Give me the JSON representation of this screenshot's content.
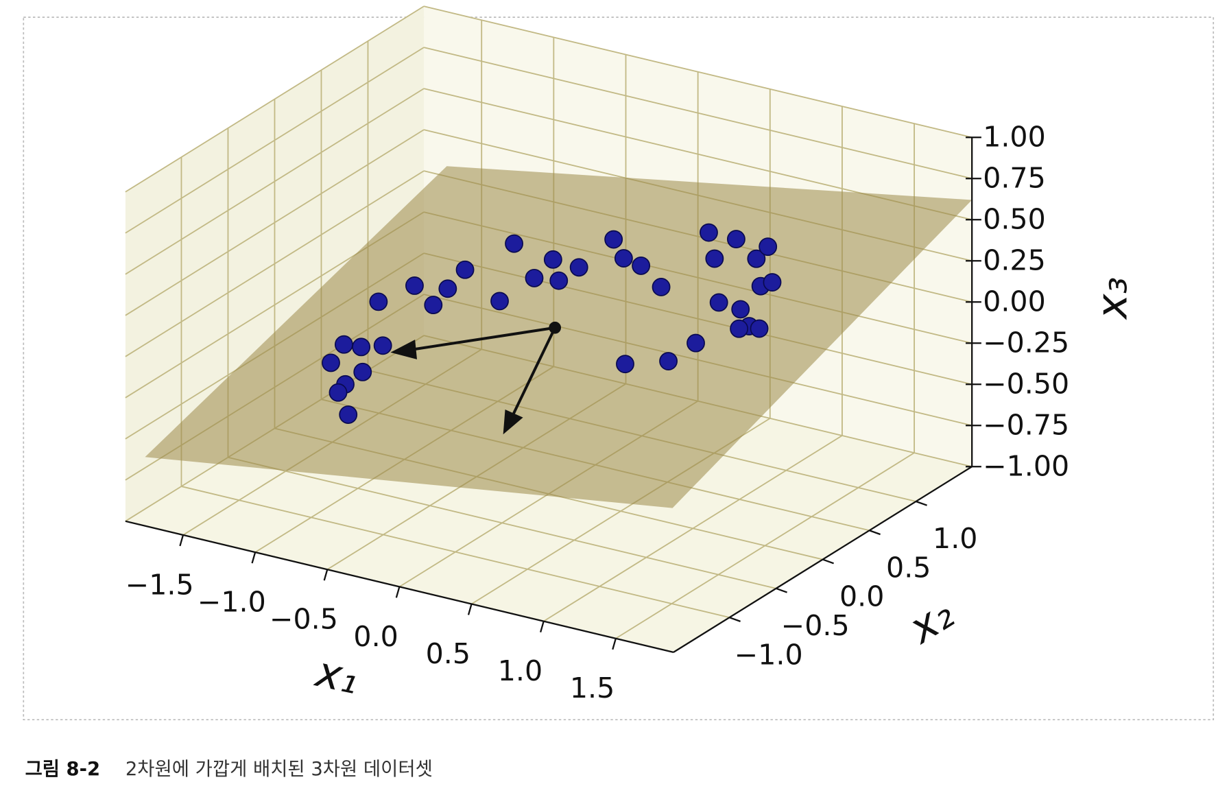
{
  "chart_data": {
    "type": "scatter3d",
    "caption_label": "그림 8-2",
    "caption": "2차원에 가깝게 배치된 3차원 데이터셋",
    "x_label": "x₁",
    "y_label": "x₂",
    "z_label": "x₃",
    "color": "#1c1c9c",
    "grid": true,
    "xlim": [
      -1.9,
      1.9
    ],
    "ylim": [
      -1.6,
      1.6
    ],
    "zlim": [
      -1,
      1
    ],
    "xticks": [
      {
        "value": -1.5,
        "label": "−1.5"
      },
      {
        "value": -1,
        "label": "−1.0"
      },
      {
        "value": -0.5,
        "label": "−0.5"
      },
      {
        "value": 0,
        "label": "0.0"
      },
      0.5,
      {
        "value": 1,
        "label": "1.0"
      },
      1.5
    ],
    "yticks": [
      {
        "value": -1,
        "label": "−1.0"
      },
      {
        "value": -0.5,
        "label": "−0.5"
      },
      {
        "value": 0,
        "label": "0.0"
      },
      0.5,
      {
        "value": 1,
        "label": "1.0"
      }
    ],
    "zticks": [
      {
        "value": -1,
        "label": "−1.00"
      },
      {
        "value": -0.75,
        "label": "−0.75"
      },
      {
        "value": -0.5,
        "label": "−0.50"
      },
      {
        "value": -0.25,
        "label": "−0.25"
      },
      {
        "value": 0,
        "label": "0.00"
      },
      {
        "value": 0.25,
        "label": "0.25"
      },
      {
        "value": 0.5,
        "label": "0.50"
      },
      {
        "value": 0.75,
        "label": "0.75"
      },
      {
        "value": 1,
        "label": "1.00"
      }
    ],
    "x": [
      -1.18,
      -1.42,
      -1.3,
      -1.51,
      -1.29,
      -1.41,
      -1.46,
      -1.39,
      -1.15,
      -0.93,
      -0.8,
      -0.7,
      -0.58,
      -0.24,
      -0.34,
      -0.1,
      0.03,
      0.07,
      0.21,
      0.45,
      0.52,
      0.64,
      0.78,
      0.53,
      0.83,
      1.02,
      1.11,
      1.15,
      1.3,
      1.44,
      1.52,
      1.18,
      1.33,
      1.47,
      1.55,
      1.39,
      1.46,
      1.32
    ],
    "y": [
      0,
      0,
      0,
      0,
      0,
      0,
      0,
      0,
      0,
      0,
      0,
      0,
      0,
      0,
      0,
      0,
      0,
      0,
      0,
      0,
      0,
      0,
      0,
      0,
      0,
      0,
      0,
      0,
      0,
      0,
      0,
      0,
      0,
      0,
      0,
      0,
      0,
      0
    ],
    "z": [
      -0.08,
      -0.39,
      -0.38,
      -0.52,
      -0.53,
      -0.63,
      -0.69,
      -0.81,
      -0.34,
      0.07,
      -0.02,
      0.1,
      0.24,
      0.47,
      0.1,
      0.29,
      0.43,
      0.31,
      0.42,
      0.64,
      0.54,
      0.52,
      0.42,
      -0.1,
      -0.02,
      0.13,
      0.82,
      0.67,
      0.82,
      0.73,
      0.82,
      0.41,
      0.4,
      0.57,
      0.61,
      0.31,
      0.31,
      0.28
    ]
  }
}
